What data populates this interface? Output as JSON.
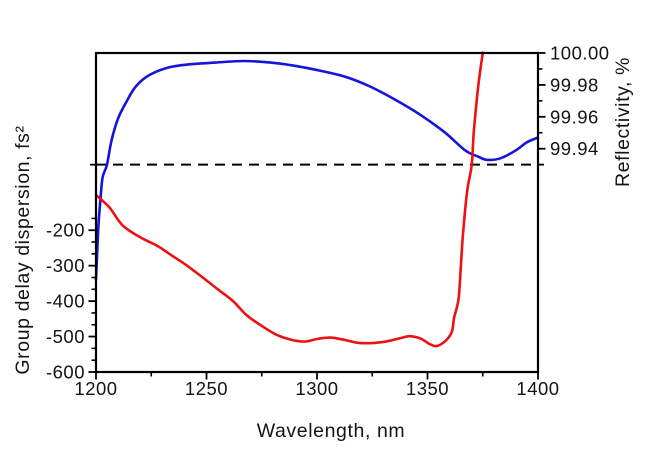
{
  "figure": {
    "background": "#ffffff",
    "frame_color": "#000000",
    "text_color": "#141414"
  },
  "chart_data": {
    "type": "line",
    "title": "",
    "xlabel": "Wavelength, nm",
    "x_axis": {
      "range": [
        1200,
        1400
      ],
      "major_ticks": [
        1200,
        1250,
        1300,
        1350,
        1400
      ],
      "tick_labels": [
        "1200",
        "1250",
        "1300",
        "1350",
        "1400"
      ],
      "minor_ticks": [
        1225,
        1275,
        1325,
        1375
      ]
    },
    "left_axis": {
      "label": "Group delay dispersion, fs²",
      "range": [
        -600,
        300
      ],
      "labeled_ticks": [
        -200,
        -300,
        -400,
        -500,
        -600
      ],
      "tick_labels": [
        "-200",
        "-300",
        "-400",
        "-500",
        "-600"
      ],
      "minor_ticks": [
        -166.67,
        -233.33,
        -266.67,
        -333.33,
        -366.67,
        -433.33,
        -466.67,
        -533.33,
        -566.67
      ]
    },
    "right_axis": {
      "label": "Reflectivity, %",
      "range": [
        99.8,
        100.0
      ],
      "labeled_ticks": [
        100.0,
        99.98,
        99.96,
        99.94
      ],
      "tick_labels": [
        "100.00",
        "99.98",
        "99.96",
        "99.94"
      ],
      "minor_ticks": [
        99.99,
        99.97,
        99.95,
        99.93
      ]
    },
    "reference_line": {
      "axis": "right",
      "value": 99.93,
      "style": "dashed",
      "color": "#000000"
    },
    "series": [
      {
        "name": "Reflectivity",
        "axis": "right",
        "color": "#1414dd",
        "x": [
          1200,
          1201,
          1202,
          1203,
          1205,
          1207,
          1210,
          1214,
          1218,
          1224,
          1233,
          1243,
          1254,
          1267,
          1279,
          1290,
          1301,
          1313,
          1324,
          1335,
          1347,
          1358,
          1367,
          1373,
          1377,
          1383,
          1390,
          1395,
          1400
        ],
        "y": [
          99.858,
          99.889,
          99.908,
          99.922,
          99.93,
          99.945,
          99.959,
          99.97,
          99.979,
          99.986,
          99.991,
          99.993,
          99.994,
          99.995,
          99.994,
          99.992,
          99.989,
          99.985,
          99.979,
          99.971,
          99.961,
          99.95,
          99.939,
          99.935,
          99.933,
          99.934,
          99.939,
          99.944,
          99.947
        ]
      },
      {
        "name": "Group delay dispersion",
        "axis": "left",
        "color": "#ee1111",
        "x": [
          1200,
          1206,
          1212,
          1220,
          1228,
          1234,
          1241,
          1248,
          1255,
          1262,
          1268,
          1275,
          1282,
          1289,
          1295,
          1300,
          1306,
          1313,
          1319,
          1326,
          1332,
          1338,
          1342,
          1347,
          1351,
          1354,
          1358,
          1361,
          1362,
          1364,
          1365,
          1366,
          1368,
          1370,
          1371,
          1373,
          1375
        ],
        "y": [
          -101,
          -135,
          -186,
          -220,
          -245,
          -270,
          -299,
          -332,
          -366,
          -400,
          -439,
          -470,
          -496,
          -510,
          -514,
          -507,
          -503,
          -510,
          -518,
          -518,
          -513,
          -504,
          -499,
          -506,
          -521,
          -527,
          -513,
          -487,
          -448,
          -397,
          -313,
          -214,
          -87,
          -16,
          82,
          208,
          301
        ]
      }
    ]
  }
}
